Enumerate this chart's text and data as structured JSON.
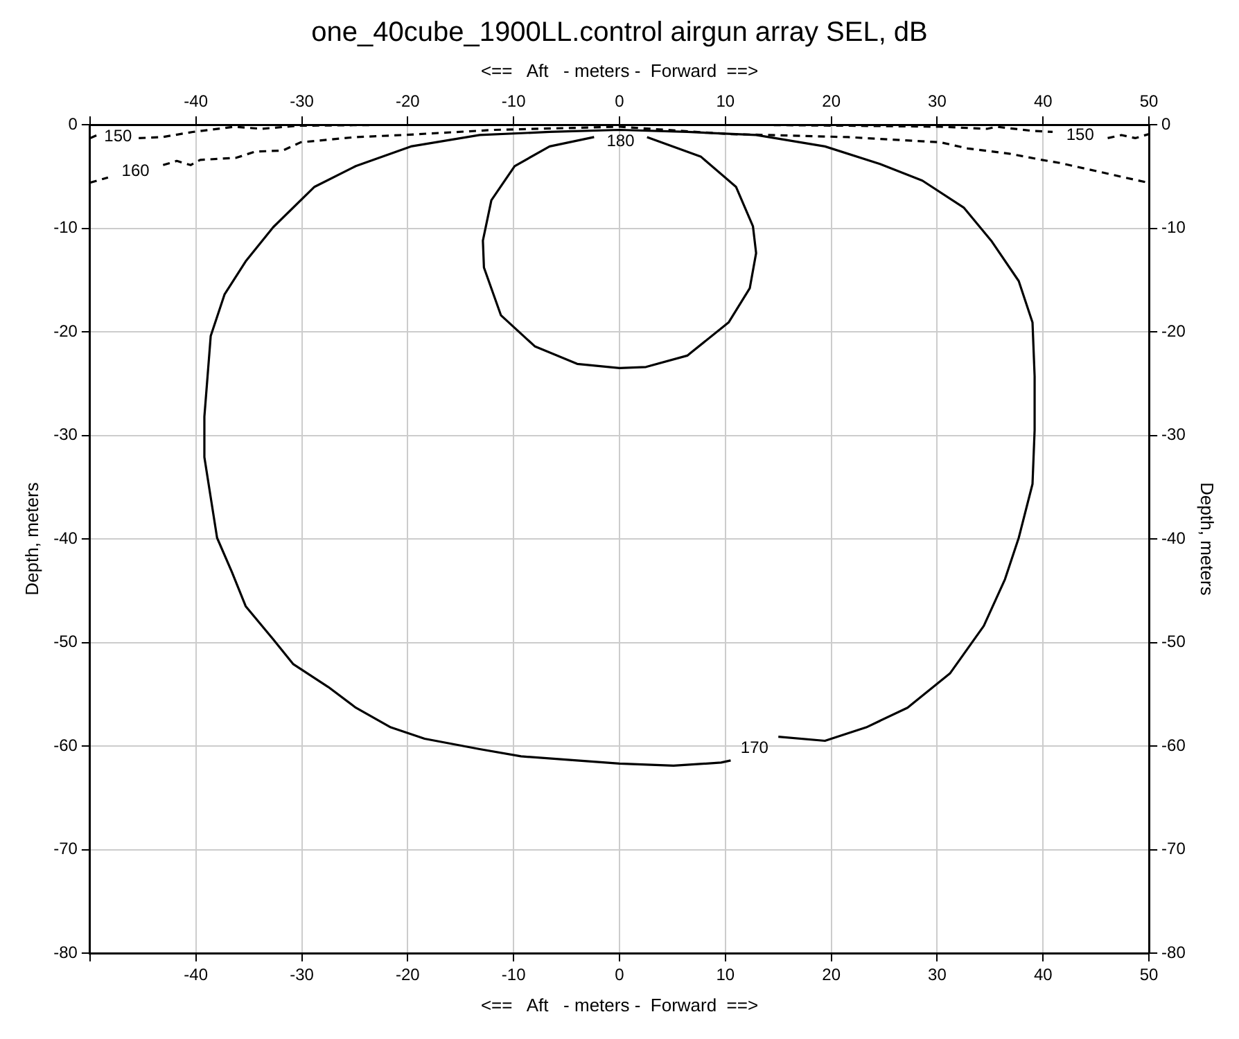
{
  "chart_data": {
    "type": "line",
    "title": "one_40cube_1900LL.control airgun array SEL, dB",
    "xlabel": "<==   Aft   - meters -  Forward  ==>",
    "x2label": "<==   Aft   - meters -  Forward  ==>",
    "ylabel": "Depth, meters",
    "y2label": "Depth, meters",
    "xlim": [
      -50,
      50
    ],
    "xticks": [
      {
        "value": -50,
        "label": null
      },
      -40,
      -30,
      -20,
      -10,
      0,
      10,
      20,
      30,
      40,
      50
    ],
    "x2lim": [
      -50,
      50
    ],
    "x2ticks": [
      {
        "value": -50,
        "label": null
      },
      -40,
      -30,
      -20,
      -10,
      0,
      10,
      20,
      30,
      40,
      50
    ],
    "ylim": [
      -80,
      0
    ],
    "yticks": [
      -80,
      -70,
      -60,
      -50,
      -40,
      -30,
      -20,
      -10,
      0
    ],
    "y2lim": [
      -80,
      0
    ],
    "y2ticks": [
      -80,
      -70,
      -60,
      -50,
      -40,
      -30,
      -20,
      -10,
      0
    ],
    "grid": true,
    "legend": false,
    "marker": "none",
    "series": [
      {
        "name": "150",
        "color": "#000000",
        "line_style": "dashed",
        "x": [
          -50,
          -49.3,
          null,
          -45.4,
          -43.2,
          -40.3,
          -36.4,
          -33.8,
          -30.3,
          -20,
          -10,
          0,
          10,
          21.6,
          30.3,
          34.7,
          35.6,
          39,
          40.9,
          null,
          46.1,
          47.4,
          48.7,
          50
        ],
        "values": [
          -1.3,
          -1,
          null,
          -1.3,
          -1.2,
          -0.7,
          -0.2,
          -0.4,
          -0.1,
          0,
          0,
          0,
          0,
          -0.1,
          -0.2,
          -0.4,
          -0.2,
          -0.6,
          -0.7,
          null,
          -1.3,
          -1,
          -1.3,
          -0.9
        ]
      },
      {
        "name": "160",
        "color": "#000000",
        "line_style": "dashed",
        "x": [
          -50,
          -48.3,
          null,
          -43.1,
          -41.8,
          -40.5,
          -39.6,
          -36.2,
          -34.4,
          -31.8,
          -30.1,
          -24.9,
          -20.5,
          -11.8,
          0,
          10.3,
          21.6,
          30.3,
          32.9,
          36.8,
          39.9,
          41.6,
          45.1,
          47.7,
          49.9
        ],
        "values": [
          -5.6,
          -5.1,
          null,
          -3.9,
          -3.5,
          -3.9,
          -3.4,
          -3.2,
          -2.6,
          -2.5,
          -1.7,
          -1.2,
          -1,
          -0.5,
          -0.2,
          -0.9,
          -1.2,
          -1.7,
          -2.3,
          -2.8,
          -3.4,
          -3.7,
          -4.5,
          -5.1,
          -5.6
        ]
      },
      {
        "name": "170",
        "color": "#000000",
        "line_style": "solid",
        "x": [
          10.5,
          9.6,
          5.1,
          0,
          -4,
          -9.3,
          -13.2,
          -18.4,
          -21.6,
          -24.9,
          -27.5,
          -30.8,
          -32.7,
          -35.3,
          -36.6,
          -38,
          -38.6,
          -39.2,
          -39.2,
          -38.9,
          -38.6,
          -37.3,
          -35.3,
          -32.7,
          -28.8,
          -24.9,
          -19.7,
          -13.2,
          -6.6,
          0,
          6.4,
          12.9,
          19.4,
          24.6,
          28.6,
          32.5,
          35.1,
          37.7,
          39,
          39.2,
          39.2,
          39,
          37.7,
          36.4,
          34.4,
          31.2,
          27.2,
          23.3,
          19.4,
          15
        ],
        "values": [
          -61.4,
          -61.6,
          -61.9,
          -61.7,
          -61.4,
          -61,
          -60.3,
          -59.3,
          -58.2,
          -56.3,
          -54.3,
          -52.1,
          -49.7,
          -46.5,
          -43.2,
          -39.9,
          -36,
          -32.1,
          -28.2,
          -24.3,
          -20.4,
          -16.4,
          -13.2,
          -9.9,
          -6,
          -4,
          -2.1,
          -1,
          -0.7,
          -0.5,
          -0.7,
          -1,
          -2.1,
          -3.8,
          -5.4,
          -8,
          -11.2,
          -15.1,
          -19.1,
          -24.3,
          -29.5,
          -34.7,
          -39.9,
          -43.9,
          -48.4,
          -53,
          -56.3,
          -58.2,
          -59.5,
          -59.1
        ]
      },
      {
        "name": "180",
        "color": "#000000",
        "line_style": "solid",
        "x": [
          2.6,
          7.7,
          11,
          12.6,
          12.9,
          12.3,
          10.3,
          6.4,
          2.5,
          0,
          -4,
          -8,
          -11.2,
          -12.8,
          -12.9,
          -12.1,
          -9.9,
          -6.6,
          -2.4
        ],
        "values": [
          -1.2,
          -3.1,
          -6,
          -9.8,
          -12.4,
          -15.8,
          -19.1,
          -22.3,
          -23.4,
          -23.5,
          -23.1,
          -21.4,
          -18.4,
          -13.8,
          -11.2,
          -7.3,
          -4,
          -2.1,
          -1.2
        ]
      }
    ]
  }
}
